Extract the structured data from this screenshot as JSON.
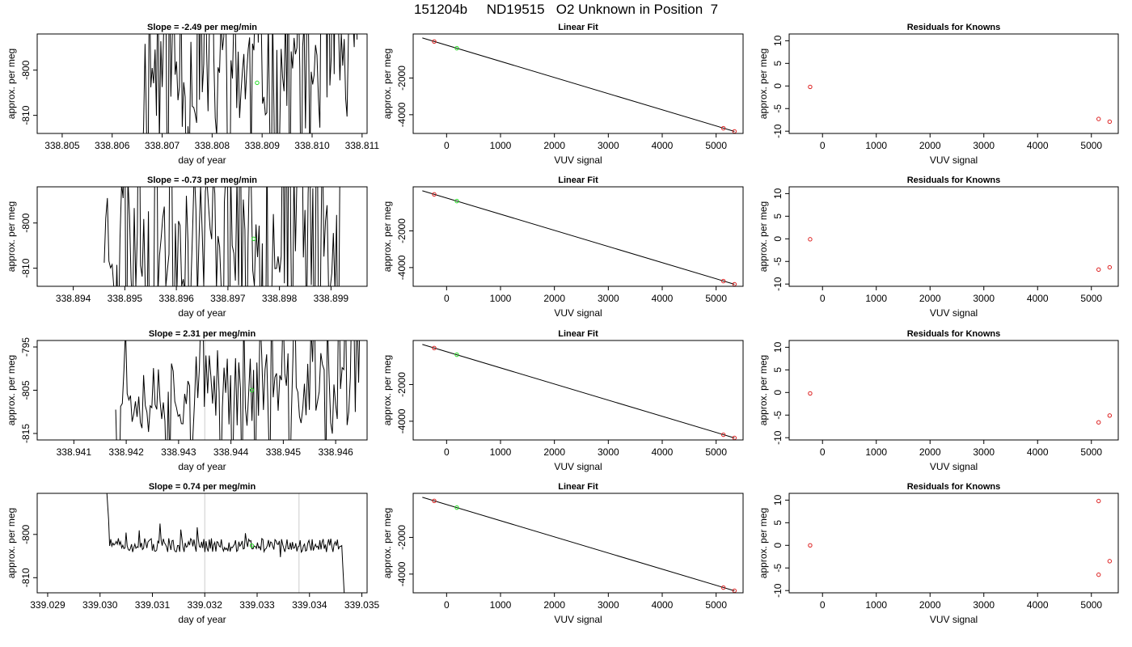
{
  "figure": {
    "title": "151204b     ND19515   O2 Unknown in Position  7"
  },
  "chart_data": [
    {
      "type": "line",
      "row": 1,
      "panel": "time-series",
      "title": "Slope =  -2.49  per meg/min",
      "xlabel": "day of year",
      "ylabel": "approx. per meg",
      "xlim": [
        338.8045,
        338.8111
      ],
      "ylim": [
        -814,
        -792
      ],
      "xticks": [
        338.805,
        338.806,
        338.807,
        338.808,
        338.809,
        338.81,
        338.811
      ],
      "xtick_labels": [
        "338.805",
        "338.806",
        "338.807",
        "338.808",
        "338.809",
        "338.810",
        "338.811"
      ],
      "yticks": [
        -810,
        -800
      ],
      "ytick_labels": [
        "-810",
        "-800"
      ],
      "vlines": [],
      "marker": {
        "x": 338.8089,
        "y": -802.8
      },
      "trace": {
        "x_start": 338.8066,
        "x_end": 338.8109,
        "seed": 11,
        "center": -800,
        "amplitude": 30,
        "wild": true
      }
    },
    {
      "type": "scatter",
      "row": 1,
      "panel": "linear-fit",
      "title": "Linear Fit",
      "xlabel": "VUV signal",
      "ylabel": "approx. per meg",
      "xlim": [
        -620,
        5500
      ],
      "ylim": [
        -5020,
        400
      ],
      "xticks": [
        0,
        1000,
        2000,
        3000,
        4000,
        5000
      ],
      "yticks": [
        -4000,
        -2000
      ],
      "line": {
        "x1": -450,
        "y1": 185,
        "x2": 5340,
        "y2": -4910
      },
      "knowns": [
        {
          "x": -230,
          "y": -10
        },
        {
          "x": 5135,
          "y": -4737
        },
        {
          "x": 5340,
          "y": -4905
        }
      ],
      "unknown": {
        "x": 190,
        "y": -377
      }
    },
    {
      "type": "scatter",
      "row": 1,
      "panel": "residuals",
      "title": "Residuals for Knowns",
      "xlabel": "VUV signal",
      "ylabel": "approx. per meg",
      "xlim": [
        -620,
        5500
      ],
      "ylim": [
        -10.5,
        11.5
      ],
      "xticks": [
        0,
        1000,
        2000,
        3000,
        4000,
        5000
      ],
      "yticks": [
        -10,
        -5,
        0,
        5,
        10
      ],
      "points": [
        {
          "x": -230,
          "y": -0.2
        },
        {
          "x": 5135,
          "y": -7.3
        },
        {
          "x": 5340,
          "y": -7.9
        }
      ]
    },
    {
      "type": "line",
      "row": 2,
      "panel": "time-series",
      "title": "Slope =  -0.73  per meg/min",
      "xlabel": "day of year",
      "ylabel": "approx. per meg",
      "xlim": [
        338.8933,
        338.8997
      ],
      "ylim": [
        -814,
        -792
      ],
      "xticks": [
        338.894,
        338.895,
        338.896,
        338.897,
        338.898,
        338.899
      ],
      "xtick_labels": [
        "338.894",
        "338.895",
        "338.896",
        "338.897",
        "338.898",
        "338.899"
      ],
      "yticks": [
        -810,
        -800
      ],
      "ytick_labels": [
        "-810",
        "-800"
      ],
      "vlines": [],
      "marker": {
        "x": 338.8975,
        "y": -803.5
      },
      "trace": {
        "x_start": 338.8946,
        "x_end": 338.8992,
        "seed": 23,
        "center": -801,
        "amplitude": 34,
        "wild": true
      }
    },
    {
      "type": "scatter",
      "row": 2,
      "panel": "linear-fit",
      "title": "Linear Fit",
      "xlabel": "VUV signal",
      "ylabel": "approx. per meg",
      "xlim": [
        -620,
        5500
      ],
      "ylim": [
        -5020,
        400
      ],
      "xticks": [
        0,
        1000,
        2000,
        3000,
        4000,
        5000
      ],
      "yticks": [
        -4000,
        -2000
      ],
      "line": {
        "x1": -450,
        "y1": 185,
        "x2": 5340,
        "y2": -4910
      },
      "knowns": [
        {
          "x": -230,
          "y": -10
        },
        {
          "x": 5135,
          "y": -4737
        },
        {
          "x": 5340,
          "y": -4905
        }
      ],
      "unknown": {
        "x": 190,
        "y": -377
      }
    },
    {
      "type": "scatter",
      "row": 2,
      "panel": "residuals",
      "title": "Residuals for Knowns",
      "xlabel": "VUV signal",
      "ylabel": "approx. per meg",
      "xlim": [
        -620,
        5500
      ],
      "ylim": [
        -10.5,
        11.5
      ],
      "xticks": [
        0,
        1000,
        2000,
        3000,
        4000,
        5000
      ],
      "yticks": [
        -10,
        -5,
        0,
        5,
        10
      ],
      "points": [
        {
          "x": -230,
          "y": -0.1
        },
        {
          "x": 5135,
          "y": -6.8
        },
        {
          "x": 5340,
          "y": -6.3
        }
      ]
    },
    {
      "type": "line",
      "row": 3,
      "panel": "time-series",
      "title": "Slope =  2.31  per meg/min",
      "xlabel": "day of year",
      "ylabel": "approx. per meg",
      "xlim": [
        338.9403,
        338.9466
      ],
      "ylim": [
        -816.5,
        -793.5
      ],
      "xticks": [
        338.941,
        338.942,
        338.943,
        338.944,
        338.945,
        338.946
      ],
      "xtick_labels": [
        "338.941",
        "338.942",
        "338.943",
        "338.944",
        "338.945",
        "338.946"
      ],
      "yticks": [
        -815,
        -805,
        -795
      ],
      "ytick_labels": [
        "-815",
        "-805",
        "-795"
      ],
      "vlines": [
        338.9435
      ],
      "marker": {
        "x": 338.9444,
        "y": -805
      },
      "trace": {
        "x_start": 338.9418,
        "x_end": 338.9465,
        "seed": 37,
        "center": -805,
        "amplitude": 20,
        "wild": true
      }
    },
    {
      "type": "scatter",
      "row": 3,
      "panel": "linear-fit",
      "title": "Linear Fit",
      "xlabel": "VUV signal",
      "ylabel": "approx. per meg",
      "xlim": [
        -620,
        5500
      ],
      "ylim": [
        -5020,
        400
      ],
      "xticks": [
        0,
        1000,
        2000,
        3000,
        4000,
        5000
      ],
      "yticks": [
        -4000,
        -2000
      ],
      "line": {
        "x1": -450,
        "y1": 185,
        "x2": 5340,
        "y2": -4910
      },
      "knowns": [
        {
          "x": -230,
          "y": -10
        },
        {
          "x": 5135,
          "y": -4737
        },
        {
          "x": 5340,
          "y": -4905
        }
      ],
      "unknown": {
        "x": 190,
        "y": -377
      }
    },
    {
      "type": "scatter",
      "row": 3,
      "panel": "residuals",
      "title": "Residuals for Knowns",
      "xlabel": "VUV signal",
      "ylabel": "approx. per meg",
      "xlim": [
        -620,
        5500
      ],
      "ylim": [
        -10.5,
        11.5
      ],
      "xticks": [
        0,
        1000,
        2000,
        3000,
        4000,
        5000
      ],
      "yticks": [
        -10,
        -5,
        0,
        5,
        10
      ],
      "points": [
        {
          "x": -230,
          "y": -0.2
        },
        {
          "x": 5135,
          "y": -6.6
        },
        {
          "x": 5340,
          "y": -5.1
        }
      ]
    },
    {
      "type": "line",
      "row": 4,
      "panel": "time-series",
      "title": "Slope =  0.74  per meg/min",
      "xlabel": "day of year",
      "ylabel": "approx. per meg",
      "xlim": [
        339.0288,
        339.0351
      ],
      "ylim": [
        -813.5,
        -790.5
      ],
      "xticks": [
        339.029,
        339.03,
        339.031,
        339.032,
        339.033,
        339.034,
        339.035
      ],
      "xtick_labels": [
        "339.029",
        "339.030",
        "339.031",
        "339.032",
        "339.033",
        "339.034",
        "339.035"
      ],
      "yticks": [
        -810,
        -800
      ],
      "ytick_labels": [
        "-810",
        "-800"
      ],
      "vlines": [
        339.032,
        339.0338
      ],
      "marker": {
        "x": 339.0329,
        "y": -802.6
      },
      "trace": {
        "x_start": 339.0301,
        "x_end": 339.0347,
        "seed": 51,
        "center": -802.5,
        "amplitude": 1.6,
        "wild": false
      }
    },
    {
      "type": "scatter",
      "row": 4,
      "panel": "linear-fit",
      "title": "Linear Fit",
      "xlabel": "VUV signal",
      "ylabel": "approx. per meg",
      "xlim": [
        -620,
        5500
      ],
      "ylim": [
        -5020,
        400
      ],
      "xticks": [
        0,
        1000,
        2000,
        3000,
        4000,
        5000
      ],
      "yticks": [
        -4000,
        -2000
      ],
      "line": {
        "x1": -450,
        "y1": 185,
        "x2": 5340,
        "y2": -4910
      },
      "knowns": [
        {
          "x": -230,
          "y": -10
        },
        {
          "x": 5135,
          "y": -4737
        },
        {
          "x": 5340,
          "y": -4905
        }
      ],
      "unknown": {
        "x": 190,
        "y": -377
      }
    },
    {
      "type": "scatter",
      "row": 4,
      "panel": "residuals",
      "title": "Residuals for Knowns",
      "xlabel": "VUV signal",
      "ylabel": "approx. per meg",
      "xlim": [
        -620,
        5500
      ],
      "ylim": [
        -10.5,
        11.5
      ],
      "xticks": [
        0,
        1000,
        2000,
        3000,
        4000,
        5000
      ],
      "yticks": [
        -10,
        -5,
        0,
        5,
        10
      ],
      "points": [
        {
          "x": -230,
          "y": 0
        },
        {
          "x": 5135,
          "y": 9.8
        },
        {
          "x": 5135,
          "y": -6.5
        },
        {
          "x": 5340,
          "y": -3.5
        }
      ]
    }
  ]
}
